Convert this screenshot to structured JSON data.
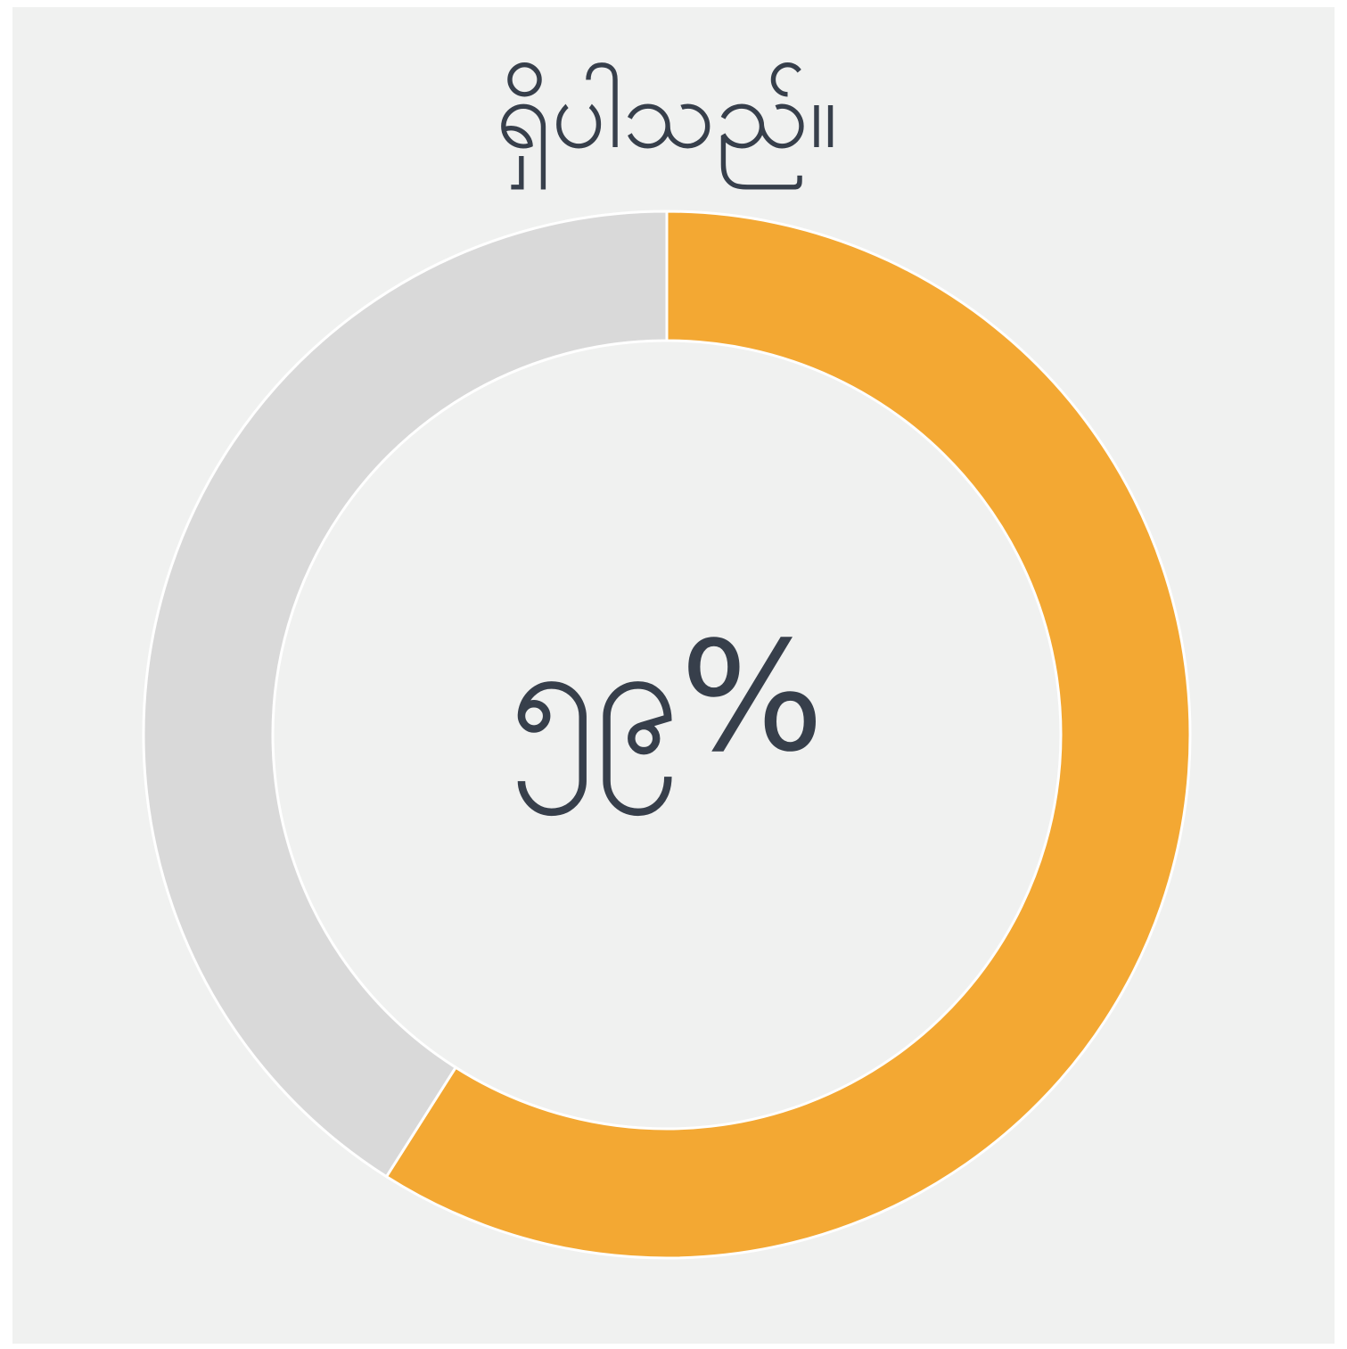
{
  "chart_data": {
    "type": "pie",
    "donut": true,
    "title": "ရှိပါသည်။",
    "values": [
      59,
      41
    ],
    "value_labels": [
      "၅၉%",
      null
    ],
    "colors": [
      "#f3a833",
      "#d9d9d9"
    ]
  }
}
